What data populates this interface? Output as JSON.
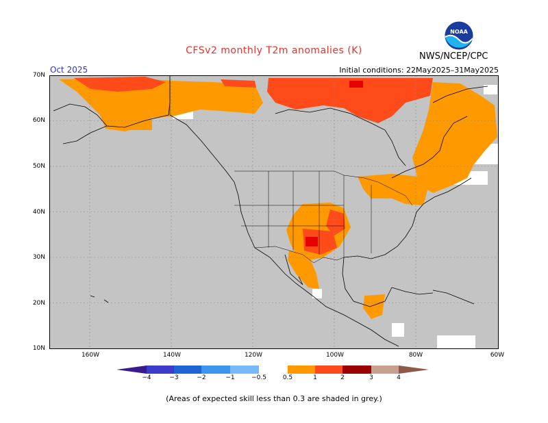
{
  "title": "CFSv2 monthly T2m anomalies (K)",
  "agency": "NWS/NCEP/CPC",
  "logo_text": "NOAA",
  "month": "Oct 2025",
  "initial_conditions": "Initial conditions: 22May2025–31May2025",
  "lat_labels": [
    "70N",
    "60N",
    "50N",
    "40N",
    "30N",
    "20N",
    "10N"
  ],
  "lon_labels": [
    "160W",
    "140W",
    "120W",
    "100W",
    "80W",
    "60W"
  ],
  "colorbar": {
    "labels": [
      "−4",
      "−3",
      "−2",
      "−1",
      "−0.5",
      "0.5",
      "1",
      "2",
      "3",
      "4"
    ],
    "colors": {
      "lt_m4": "#3a1a8c",
      "m4_m3": "#3c3cc8",
      "m3_m2": "#1e64d2",
      "m2_m1": "#3c96f0",
      "m1_m05": "#78b9fa",
      "neutral": "#ffffff",
      "p05_1": "#ff9900",
      "p1_2": "#ff4a1a",
      "p2_3": "#e60000",
      "p3_4": "#9b0000",
      "p4_gt": "#c8a090",
      "gt_top": "#8c5a46"
    }
  },
  "map_colors": {
    "grey": "#c4c4c4",
    "ocean": "#c4c4c4",
    "white": "#ffffff"
  },
  "footnote": "(Areas of expected skill less than 0.3 are shaded in grey.)"
}
